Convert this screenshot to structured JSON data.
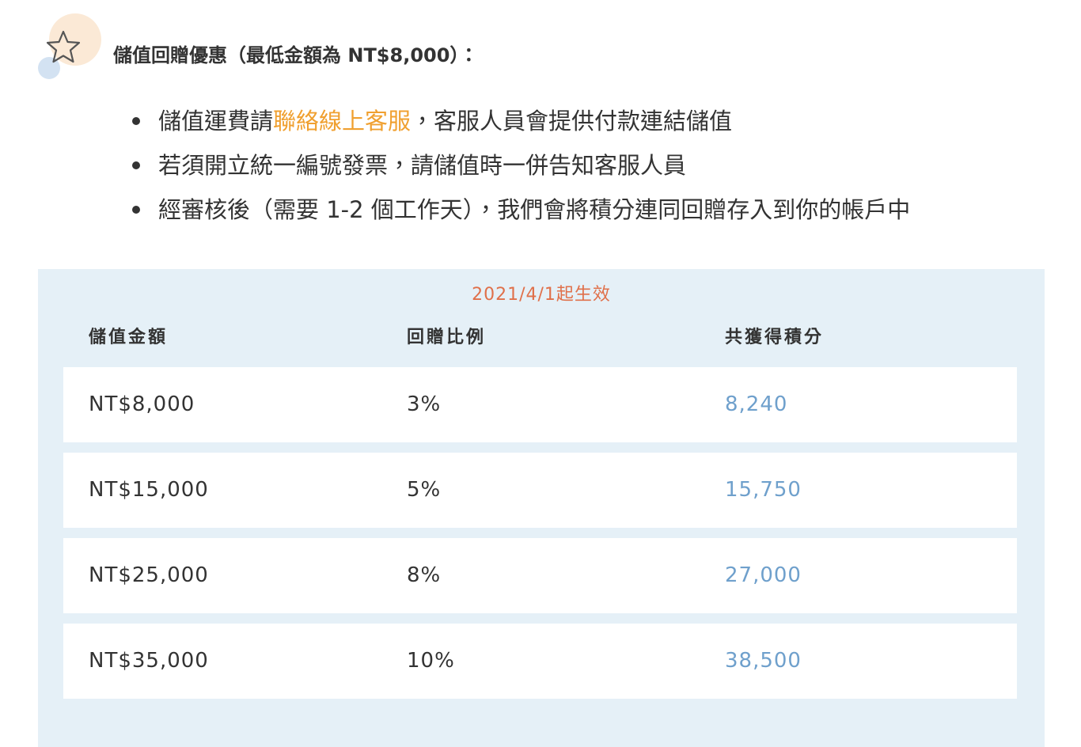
{
  "header": {
    "title": "儲值回贈優惠（最低金額為 NT$8,000）："
  },
  "bullets": [
    [
      "儲值運費請",
      "聯絡線上客服",
      "，客服人員會提供付款連結儲值"
    ],
    [
      "若須開立統一編號發票，請儲值時一併告知客服人員"
    ],
    [
      "經審核後（需要 1-2 個工作天），我們會將積分連同回贈存入到你的帳戶中"
    ]
  ],
  "table": {
    "caption": "2021/4/1起生效",
    "headers": [
      "儲值金額",
      "回贈比例",
      "共獲得積分"
    ],
    "rows": [
      [
        "NT$8,000",
        "3%",
        "8,240"
      ],
      [
        "NT$15,000",
        "5%",
        "15,750"
      ],
      [
        "NT$25,000",
        "8%",
        "27,000"
      ],
      [
        "NT$35,000",
        "10%",
        "38,500"
      ]
    ]
  }
}
